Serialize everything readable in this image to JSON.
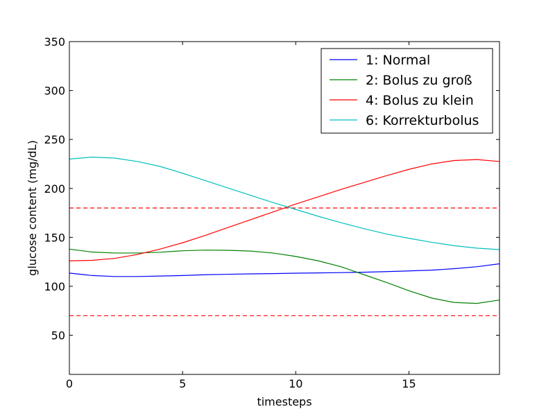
{
  "chart_data": {
    "type": "line",
    "xlabel": "timesteps",
    "ylabel": "glucose content (mg/dL)",
    "xlim": [
      0,
      19
    ],
    "ylim": [
      10,
      350
    ],
    "x_ticks": [
      0,
      5,
      10,
      15
    ],
    "y_ticks": [
      50,
      100,
      150,
      200,
      250,
      300,
      350
    ],
    "grid": false,
    "legend_position": "top-right",
    "x": [
      0,
      1,
      2,
      3,
      4,
      5,
      6,
      7,
      8,
      9,
      10,
      11,
      12,
      13,
      14,
      15,
      16,
      17,
      18,
      19
    ],
    "series": [
      {
        "name": "1: Normal",
        "color": "#0000ff",
        "values": [
          113.5,
          111,
          110,
          110,
          110.5,
          111,
          111.8,
          112.3,
          112.7,
          113,
          113.4,
          113.7,
          114,
          114.4,
          115,
          115.7,
          116.5,
          118,
          120,
          123
        ]
      },
      {
        "name": "2: Bolus zu groß",
        "color": "#008000",
        "values": [
          138,
          135,
          134,
          134,
          134.8,
          136.3,
          137,
          136.8,
          136,
          134,
          130.5,
          126,
          120,
          112,
          104,
          95.5,
          88,
          83.5,
          82.5,
          86
        ]
      },
      {
        "name": "4: Bolus zu klein",
        "color": "#ff0000",
        "values": [
          126,
          126.5,
          128.5,
          132.5,
          138,
          144.5,
          152,
          160,
          168,
          176,
          184,
          191.5,
          199,
          206,
          213,
          219.5,
          225,
          228.5,
          229.5,
          227.5
        ]
      },
      {
        "name": "6: Korrekturbolus",
        "color": "#00bfbf",
        "values": [
          230,
          232,
          231,
          227.5,
          222.5,
          215.5,
          208,
          200.5,
          193,
          185.5,
          178.5,
          171.5,
          165,
          159,
          153.5,
          149,
          145,
          141.5,
          139,
          137.5
        ]
      }
    ],
    "reference_lines": [
      {
        "y": 180,
        "color": "#ff0000",
        "style": "dashed"
      },
      {
        "y": 70,
        "color": "#ff0000",
        "style": "dashed"
      }
    ]
  }
}
